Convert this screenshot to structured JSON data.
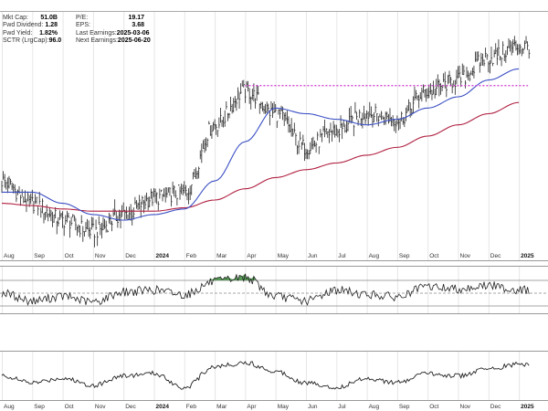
{
  "fundamentals": {
    "left": [
      {
        "label": "Mkt Cap:",
        "value": "51.0B"
      },
      {
        "label": "Fwd Dividend:",
        "value": "1.28"
      },
      {
        "label": "Fwd Yield:",
        "value": "1.82%"
      },
      {
        "label": "SCTR (LrgCap):",
        "value": "96.0"
      }
    ],
    "right": [
      {
        "label": "P/E:",
        "value": "19.17"
      },
      {
        "label": "EPS:",
        "value": "3.68"
      },
      {
        "label": "Last Earnings:",
        "value": "2025-03-06"
      },
      {
        "label": "Next Earnings:",
        "value": "2025-06-20"
      }
    ]
  },
  "colors": {
    "price": "#222222",
    "ma_short": "#3b4fc4",
    "ma_long": "#b02040",
    "resistance": "#cc33cc",
    "overbought_fill": "#3c8a3c",
    "grid": "#e6e6e6"
  },
  "chart_data": {
    "type": "line",
    "x_axis_labels": [
      "Aug",
      "Sep",
      "Oct",
      "Nov",
      "Dec",
      "2024",
      "Feb",
      "Mar",
      "Apr",
      "May",
      "Jun",
      "Jul",
      "Aug",
      "Sep",
      "Oct",
      "Nov",
      "Dec",
      "2025"
    ],
    "bold_labels": [
      "2024",
      "2025"
    ],
    "price_panel": {
      "style": "ohlc-bars",
      "price_series": [
        {
          "date": "2023-08",
          "value": 46
        },
        {
          "date": "2023-09",
          "value": 44
        },
        {
          "date": "2023-10",
          "value": 42.5
        },
        {
          "date": "2023-11",
          "value": 41.5
        },
        {
          "date": "2023-12",
          "value": 43
        },
        {
          "date": "2024-01",
          "value": 44.5
        },
        {
          "date": "2024-02",
          "value": 45
        },
        {
          "date": "2024-03",
          "value": 51
        },
        {
          "date": "2024-04",
          "value": 54
        },
        {
          "date": "2024-05",
          "value": 52
        },
        {
          "date": "2024-06",
          "value": 49
        },
        {
          "date": "2024-07",
          "value": 50.5
        },
        {
          "date": "2024-08",
          "value": 52
        },
        {
          "date": "2024-09",
          "value": 51.5
        },
        {
          "date": "2024-10",
          "value": 54
        },
        {
          "date": "2024-11",
          "value": 55
        },
        {
          "date": "2024-12",
          "value": 57
        },
        {
          "date": "2025-01",
          "value": 58
        }
      ],
      "ma_short_series": [
        {
          "date": "2023-08",
          "value": 45
        },
        {
          "date": "2023-09",
          "value": 45
        },
        {
          "date": "2023-10",
          "value": 44
        },
        {
          "date": "2023-11",
          "value": 43
        },
        {
          "date": "2023-12",
          "value": 42.5
        },
        {
          "date": "2024-01",
          "value": 43
        },
        {
          "date": "2024-02",
          "value": 43.5
        },
        {
          "date": "2024-03",
          "value": 46
        },
        {
          "date": "2024-04",
          "value": 49.5
        },
        {
          "date": "2024-05",
          "value": 52.5
        },
        {
          "date": "2024-06",
          "value": 52
        },
        {
          "date": "2024-07",
          "value": 51.5
        },
        {
          "date": "2024-08",
          "value": 51
        },
        {
          "date": "2024-09",
          "value": 51.5
        },
        {
          "date": "2024-10",
          "value": 52.5
        },
        {
          "date": "2024-11",
          "value": 53.5
        },
        {
          "date": "2024-12",
          "value": 55
        },
        {
          "date": "2025-01",
          "value": 56
        }
      ],
      "ma_long_series": [
        {
          "date": "2023-08",
          "value": 44
        },
        {
          "date": "2023-09",
          "value": 43.8
        },
        {
          "date": "2023-10",
          "value": 43.5
        },
        {
          "date": "2023-11",
          "value": 43.3
        },
        {
          "date": "2023-12",
          "value": 43.3
        },
        {
          "date": "2024-01",
          "value": 43.3
        },
        {
          "date": "2024-02",
          "value": 43.6
        },
        {
          "date": "2024-03",
          "value": 44.3
        },
        {
          "date": "2024-04",
          "value": 45.3
        },
        {
          "date": "2024-05",
          "value": 46.3
        },
        {
          "date": "2024-06",
          "value": 47
        },
        {
          "date": "2024-07",
          "value": 47.6
        },
        {
          "date": "2024-08",
          "value": 48.3
        },
        {
          "date": "2024-09",
          "value": 49
        },
        {
          "date": "2024-10",
          "value": 50
        },
        {
          "date": "2024-11",
          "value": 51
        },
        {
          "date": "2024-12",
          "value": 52
        },
        {
          "date": "2025-01",
          "value": 53
        }
      ],
      "resistance": {
        "value": 54.5,
        "from": "2024-04",
        "to": "2025-01"
      },
      "ylim": [
        39,
        61
      ]
    },
    "oscillator_panel": {
      "series": [
        {
          "date": "2023-08",
          "value": 50
        },
        {
          "date": "2023-09",
          "value": 38
        },
        {
          "date": "2023-10",
          "value": 45
        },
        {
          "date": "2023-11",
          "value": 36
        },
        {
          "date": "2023-12",
          "value": 52
        },
        {
          "date": "2024-01",
          "value": 55
        },
        {
          "date": "2024-02",
          "value": 48
        },
        {
          "date": "2024-03",
          "value": 68
        },
        {
          "date": "2024-04",
          "value": 75
        },
        {
          "date": "2024-05",
          "value": 45
        },
        {
          "date": "2024-06",
          "value": 38
        },
        {
          "date": "2024-07",
          "value": 55
        },
        {
          "date": "2024-08",
          "value": 48
        },
        {
          "date": "2024-09",
          "value": 44
        },
        {
          "date": "2024-10",
          "value": 60
        },
        {
          "date": "2024-11",
          "value": 57
        },
        {
          "date": "2024-12",
          "value": 62
        },
        {
          "date": "2025-01",
          "value": 55
        }
      ],
      "levels": [
        70,
        50,
        30
      ],
      "ylim": [
        20,
        90
      ]
    },
    "momentum_panel": {
      "series": [
        {
          "date": "2023-08",
          "value": 0
        },
        {
          "date": "2023-09",
          "value": -1.5
        },
        {
          "date": "2023-10",
          "value": -0.5
        },
        {
          "date": "2023-11",
          "value": -2
        },
        {
          "date": "2023-12",
          "value": 0
        },
        {
          "date": "2024-01",
          "value": 0.5
        },
        {
          "date": "2024-02",
          "value": -2.5
        },
        {
          "date": "2024-03",
          "value": 2
        },
        {
          "date": "2024-04",
          "value": 2.8
        },
        {
          "date": "2024-05",
          "value": 1
        },
        {
          "date": "2024-06",
          "value": -1.5
        },
        {
          "date": "2024-07",
          "value": -2.5
        },
        {
          "date": "2024-08",
          "value": -0.5
        },
        {
          "date": "2024-09",
          "value": -1.5
        },
        {
          "date": "2024-10",
          "value": 0.5
        },
        {
          "date": "2024-11",
          "value": 0
        },
        {
          "date": "2024-12",
          "value": 1.5
        },
        {
          "date": "2025-01",
          "value": 2.5
        }
      ],
      "ylim": [
        -5,
        5
      ]
    }
  }
}
